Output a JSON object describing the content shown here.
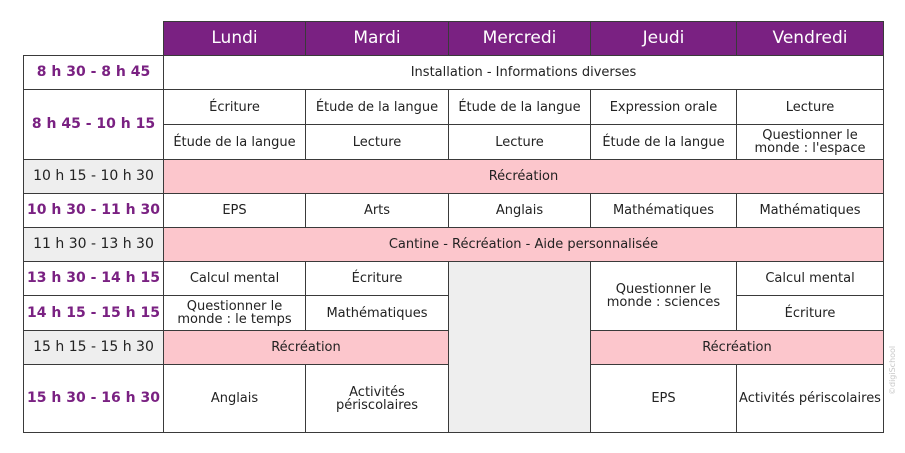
{
  "days": [
    "Lundi",
    "Mardi",
    "Mercredi",
    "Jeudi",
    "Vendredi"
  ],
  "rows": {
    "r1": {
      "time": "8 h 30 - 8 h 45",
      "all": "Installation - Informations diverses"
    },
    "r2": {
      "time": "8 h 45 - 10 h 15",
      "a": [
        "Écriture",
        "Étude de la langue",
        "Étude de la langue",
        "Expression orale",
        "Lecture"
      ],
      "b": [
        "Étude de la langue",
        "Lecture",
        "Lecture",
        "Étude de la langue",
        "Questionner le monde : l'espace"
      ]
    },
    "r3": {
      "time": "10 h 15 - 10 h 30",
      "all": "Récréation"
    },
    "r4": {
      "time": "10 h 30 - 11 h 30",
      "cells": [
        "EPS",
        "Arts",
        "Anglais",
        "Mathématiques",
        "Mathématiques"
      ]
    },
    "r5": {
      "time": "11 h 30 - 13 h 30",
      "all": "Cantine - Récréation - Aide personnalisée"
    },
    "r6": {
      "time": "13 h 30 - 14 h 15",
      "lundi": "Calcul mental",
      "mardi": "Écriture",
      "jeudi": "Questionner le monde : sciences",
      "vendredi": "Calcul mental"
    },
    "r7": {
      "time": "14 h 15 - 15 h 15",
      "lundi": "Questionner le monde : le temps",
      "mardi": "Mathématiques",
      "vendredi": "Écriture"
    },
    "r8": {
      "time": "15 h 15 - 15 h 30",
      "lundi_mardi": "Récréation",
      "jeudi_vendredi": "Récréation"
    },
    "r9": {
      "time": "15 h 30 - 16 h 30",
      "lundi": "Anglais",
      "mardi": "Activités périscolaires",
      "jeudi": "EPS",
      "vendredi": "Activités périscolaires"
    }
  },
  "watermark": "©digiSchool",
  "colors": {
    "header": "#7a2182",
    "time_text": "#7a2182",
    "break": "#fcc6cc",
    "off": "#eeeeee"
  }
}
